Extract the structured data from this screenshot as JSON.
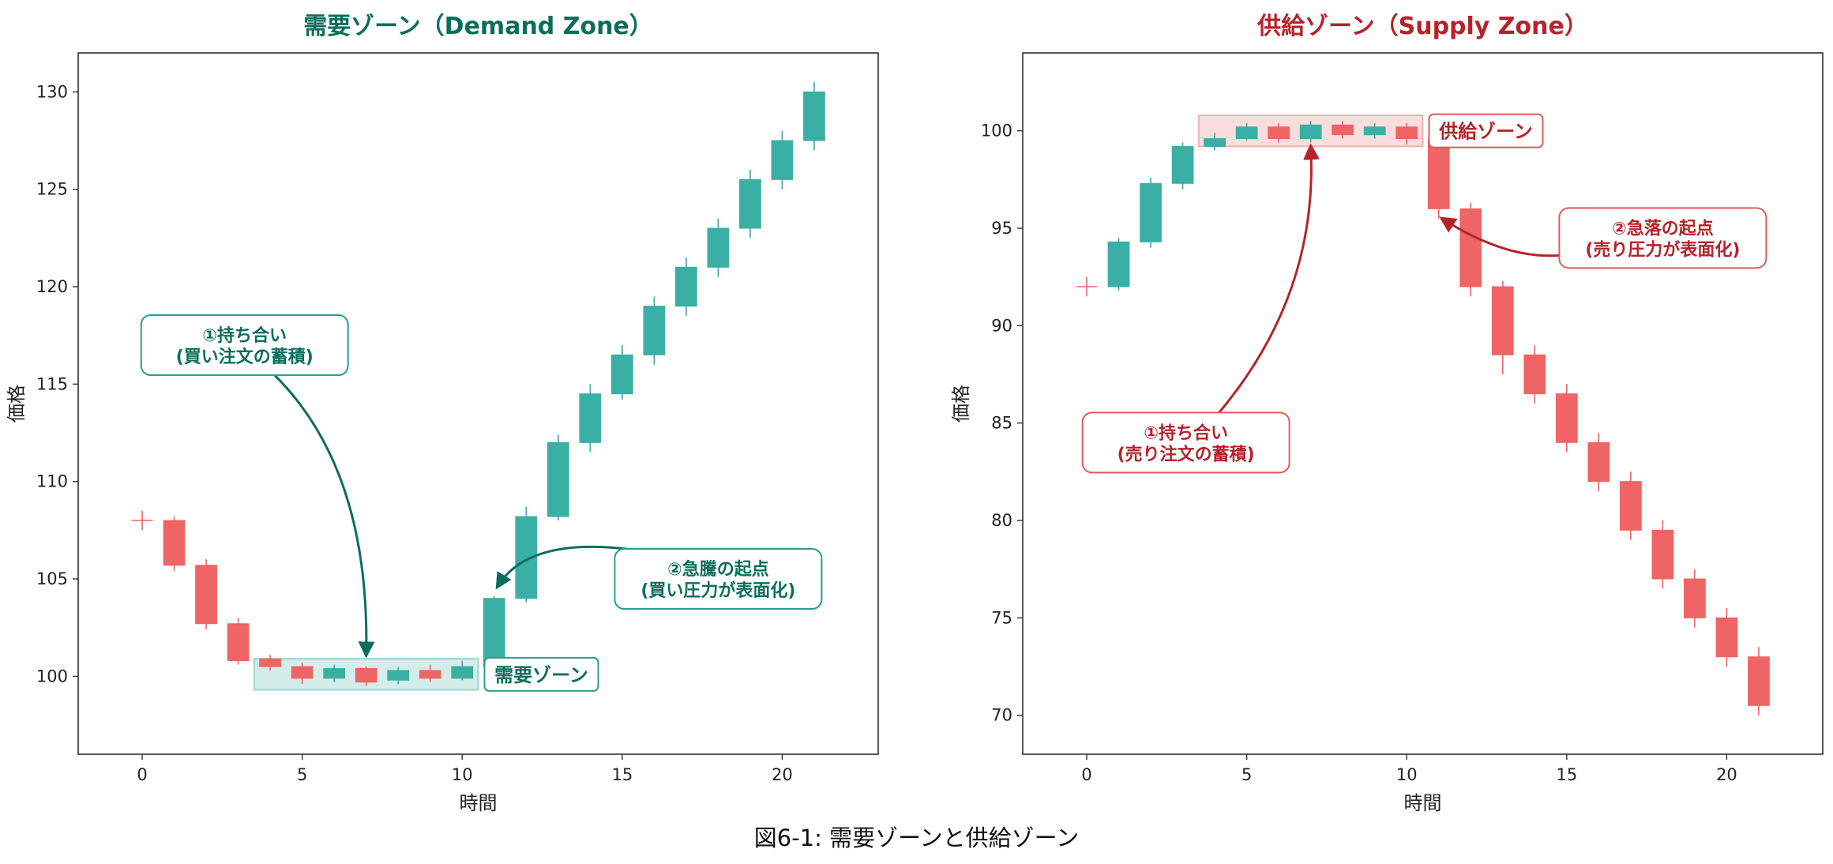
{
  "figure_caption": "図6-1: 需要ゾーンと供給ゾーン",
  "colors": {
    "bull": "#3aafa3",
    "bear": "#ef6464",
    "demand_text": "#0b6e5c",
    "supply_text": "#b5232a"
  },
  "chart_data": [
    {
      "type": "candlestick",
      "title": "需要ゾーン（Demand Zone）",
      "xlabel": "時間",
      "ylabel": "価格",
      "xlim": [
        -2,
        23
      ],
      "ylim": [
        96,
        132
      ],
      "xticks": [
        0,
        5,
        10,
        15,
        20
      ],
      "yticks": [
        100,
        105,
        110,
        115,
        120,
        125,
        130
      ],
      "grid": false,
      "candles": [
        {
          "t": 0,
          "o": 108,
          "h": 108.5,
          "l": 107.5,
          "c": 108
        },
        {
          "t": 1,
          "o": 108,
          "h": 108.2,
          "l": 105.4,
          "c": 105.7
        },
        {
          "t": 2,
          "o": 105.7,
          "h": 106,
          "l": 102.4,
          "c": 102.7
        },
        {
          "t": 3,
          "o": 102.7,
          "h": 103,
          "l": 100.6,
          "c": 100.8
        },
        {
          "t": 4,
          "o": 100.9,
          "h": 101.1,
          "l": 100.3,
          "c": 100.5
        },
        {
          "t": 5,
          "o": 100.5,
          "h": 100.7,
          "l": 99.6,
          "c": 99.9
        },
        {
          "t": 6,
          "o": 99.9,
          "h": 100.6,
          "l": 99.7,
          "c": 100.4
        },
        {
          "t": 7,
          "o": 100.4,
          "h": 100.5,
          "l": 99.5,
          "c": 99.7
        },
        {
          "t": 8,
          "o": 99.8,
          "h": 100.5,
          "l": 99.6,
          "c": 100.3
        },
        {
          "t": 9,
          "o": 100.3,
          "h": 100.6,
          "l": 99.7,
          "c": 99.9
        },
        {
          "t": 10,
          "o": 99.9,
          "h": 100.8,
          "l": 99.8,
          "c": 100.5
        },
        {
          "t": 11,
          "o": 100.5,
          "h": 104.1,
          "l": 100.3,
          "c": 104
        },
        {
          "t": 12,
          "o": 104,
          "h": 108.7,
          "l": 103.8,
          "c": 108.2
        },
        {
          "t": 13,
          "o": 108.2,
          "h": 112.4,
          "l": 108,
          "c": 112
        },
        {
          "t": 14,
          "o": 112,
          "h": 115,
          "l": 111.5,
          "c": 114.5
        },
        {
          "t": 15,
          "o": 114.5,
          "h": 117,
          "l": 114.2,
          "c": 116.5
        },
        {
          "t": 16,
          "o": 116.5,
          "h": 119.5,
          "l": 116,
          "c": 119
        },
        {
          "t": 17,
          "o": 119,
          "h": 121.5,
          "l": 118.5,
          "c": 121
        },
        {
          "t": 18,
          "o": 121,
          "h": 123.5,
          "l": 120.5,
          "c": 123
        },
        {
          "t": 19,
          "o": 123,
          "h": 126,
          "l": 122.5,
          "c": 125.5
        },
        {
          "t": 20,
          "o": 125.5,
          "h": 128,
          "l": 125,
          "c": 127.5
        },
        {
          "t": 21,
          "o": 127.5,
          "h": 130.5,
          "l": 127,
          "c": 130
        }
      ],
      "zone": {
        "x0": 3.5,
        "x1": 10.5,
        "y0": 99.3,
        "y1": 100.9,
        "label": "需要ゾーン"
      },
      "annotations": [
        {
          "text": "①持ち合い\n(買い注文の蓄積)",
          "box_at": [
            3.2,
            117
          ],
          "arrow_to": [
            7,
            101.1
          ]
        },
        {
          "text": "②急騰の起点\n(買い圧力が表面化)",
          "box_at": [
            18,
            105
          ],
          "arrow_to": [
            11.1,
            104.6
          ]
        }
      ]
    },
    {
      "type": "candlestick",
      "title": "供給ゾーン（Supply Zone）",
      "xlabel": "時間",
      "ylabel": "価格",
      "xlim": [
        -2,
        23
      ],
      "ylim": [
        68,
        104
      ],
      "xticks": [
        0,
        5,
        10,
        15,
        20
      ],
      "yticks": [
        70,
        75,
        80,
        85,
        90,
        95,
        100
      ],
      "grid": false,
      "candles": [
        {
          "t": 0,
          "o": 92,
          "h": 92.5,
          "l": 91.5,
          "c": 92
        },
        {
          "t": 1,
          "o": 92,
          "h": 94.5,
          "l": 91.8,
          "c": 94.3
        },
        {
          "t": 2,
          "o": 94.3,
          "h": 97.6,
          "l": 94,
          "c": 97.3
        },
        {
          "t": 3,
          "o": 97.3,
          "h": 99.4,
          "l": 97,
          "c": 99.2
        },
        {
          "t": 4,
          "o": 99.2,
          "h": 99.9,
          "l": 99,
          "c": 99.6
        },
        {
          "t": 5,
          "o": 99.6,
          "h": 100.4,
          "l": 99.5,
          "c": 100.2
        },
        {
          "t": 6,
          "o": 100.2,
          "h": 100.4,
          "l": 99.4,
          "c": 99.6
        },
        {
          "t": 7,
          "o": 99.6,
          "h": 100.5,
          "l": 99.4,
          "c": 100.3
        },
        {
          "t": 8,
          "o": 100.3,
          "h": 100.5,
          "l": 99.6,
          "c": 99.8
        },
        {
          "t": 9,
          "o": 99.8,
          "h": 100.4,
          "l": 99.6,
          "c": 100.2
        },
        {
          "t": 10,
          "o": 100.2,
          "h": 100.4,
          "l": 99.3,
          "c": 99.6
        },
        {
          "t": 11,
          "o": 99.6,
          "h": 100,
          "l": 95.5,
          "c": 96
        },
        {
          "t": 12,
          "o": 96,
          "h": 96.3,
          "l": 91.5,
          "c": 92
        },
        {
          "t": 13,
          "o": 92,
          "h": 92.3,
          "l": 87.5,
          "c": 88.5
        },
        {
          "t": 14,
          "o": 88.5,
          "h": 89,
          "l": 86,
          "c": 86.5
        },
        {
          "t": 15,
          "o": 86.5,
          "h": 87,
          "l": 83.5,
          "c": 84
        },
        {
          "t": 16,
          "o": 84,
          "h": 84.5,
          "l": 81.5,
          "c": 82
        },
        {
          "t": 17,
          "o": 82,
          "h": 82.5,
          "l": 79,
          "c": 79.5
        },
        {
          "t": 18,
          "o": 79.5,
          "h": 80,
          "l": 76.5,
          "c": 77
        },
        {
          "t": 19,
          "o": 77,
          "h": 77.5,
          "l": 74.5,
          "c": 75
        },
        {
          "t": 20,
          "o": 75,
          "h": 75.5,
          "l": 72.5,
          "c": 73
        },
        {
          "t": 21,
          "o": 73,
          "h": 73.5,
          "l": 70,
          "c": 70.5
        }
      ],
      "zone": {
        "x0": 3.5,
        "x1": 10.5,
        "y0": 99.2,
        "y1": 100.8,
        "label": "供給ゾーン"
      },
      "annotations": [
        {
          "text": "①持ち合い\n(売り注文の蓄積)",
          "box_at": [
            3.1,
            84
          ],
          "arrow_to": [
            7,
            99.2
          ]
        },
        {
          "text": "②急落の起点\n(売り圧力が表面化)",
          "box_at": [
            18,
            94.5
          ],
          "arrow_to": [
            11.1,
            95.5
          ]
        }
      ]
    }
  ]
}
